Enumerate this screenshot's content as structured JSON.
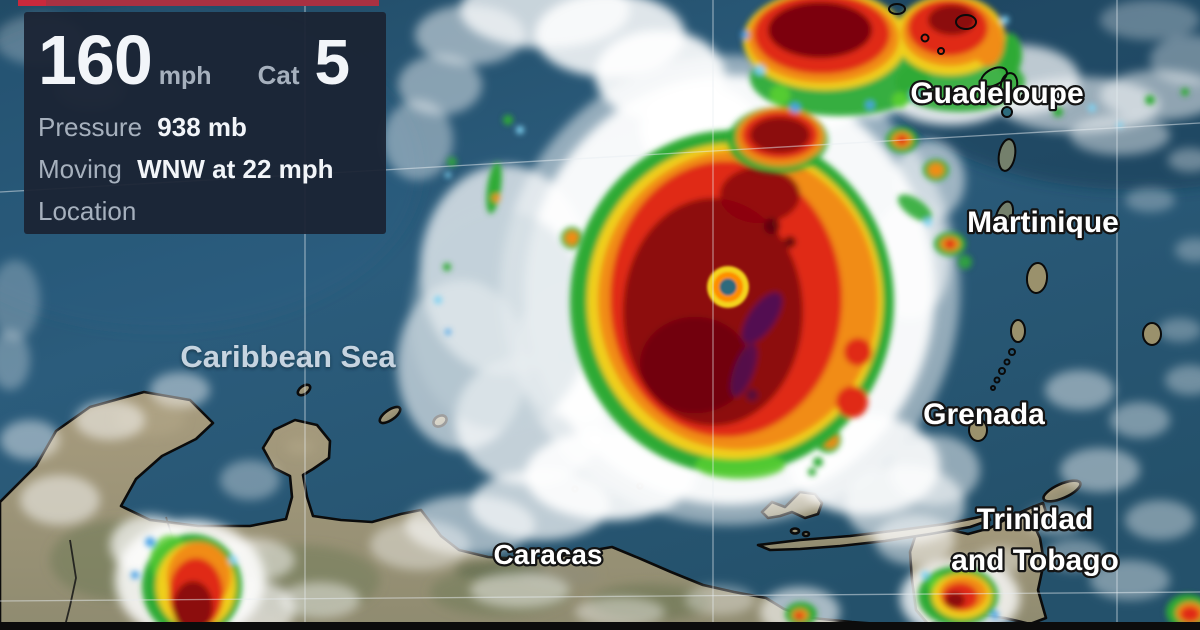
{
  "player": {
    "progress_percent": 30.5,
    "progress_color": "#a93142"
  },
  "storm_panel": {
    "wind_value": "160",
    "wind_unit": "mph",
    "category_label": "Cat",
    "category_value": "5",
    "pressure_label": "Pressure",
    "pressure_value": "938 mb",
    "moving_label": "Moving",
    "moving_value": "WNW at 22 mph",
    "location_label": "Location",
    "panel_bg": "#1b2333"
  },
  "map": {
    "sea_label": "Caribbean Sea",
    "place_labels": {
      "guadeloupe": "Guadeloupe",
      "martinique": "Martinique",
      "grenada": "Grenada",
      "trinidad_line1": "Trinidad",
      "trinidad_line2": "and Tobago",
      "caracas": "Caracas"
    },
    "radar_palette": [
      "#4aa3e8",
      "#7fd2f2",
      "#2daa35",
      "#f0cf1b",
      "#f18c16",
      "#e02912",
      "#8c0811",
      "#4e1157"
    ],
    "hurricane_eye_color": "#2d6b7c",
    "ocean_color": "#2a5a7a",
    "land_color": "#a89c7e"
  }
}
